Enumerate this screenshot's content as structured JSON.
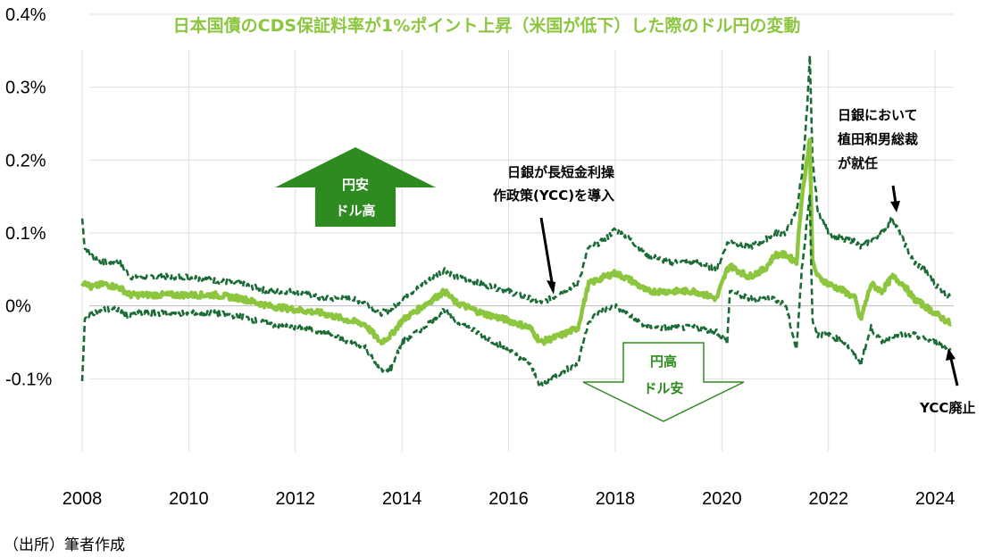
{
  "colors": {
    "title": "#8cc63f",
    "center_line": "#8cc63f",
    "band_line": "#1a6b35",
    "up_arrow": "#2e8b1f",
    "down_arrow_stroke": "#2e8b1f",
    "grid": "#e0e0e0"
  },
  "chart_data": {
    "type": "line",
    "title": "日本国債のCDS保証料率が1%ポイント上昇（米国が低下）した際のドル円の変動",
    "xlabel": "",
    "ylabel": "",
    "xlim": [
      2008.0,
      2024.35
    ],
    "ylim": [
      -0.2,
      0.4
    ],
    "x_ticks": [
      2008,
      2010,
      2012,
      2014,
      2016,
      2018,
      2020,
      2022,
      2024
    ],
    "x_tick_labels": [
      "2008",
      "2010",
      "2012",
      "2014",
      "2016",
      "2018",
      "2020",
      "2022",
      "2024"
    ],
    "y_ticks": [
      -0.1,
      0.0,
      0.1,
      0.2,
      0.3,
      0.4
    ],
    "y_tick_labels": [
      "-0.1%",
      "0%",
      "0.1%",
      "0.2%",
      "0.3%",
      "0.4%"
    ],
    "grid": "vertical and horizontal",
    "x": [
      2008.0,
      2008.05,
      2008.15,
      2008.4,
      2008.7,
      2008.9,
      2009.0,
      2009.5,
      2010.0,
      2010.5,
      2011.0,
      2011.5,
      2012.0,
      2012.5,
      2013.0,
      2013.3,
      2013.6,
      2013.8,
      2014.0,
      2014.4,
      2014.8,
      2015.0,
      2015.5,
      2016.0,
      2016.4,
      2016.6,
      2016.8,
      2017.0,
      2017.3,
      2017.5,
      2017.8,
      2018.0,
      2018.3,
      2018.6,
      2019.0,
      2019.5,
      2019.9,
      2020.1,
      2020.15,
      2020.5,
      2020.8,
      2021.0,
      2021.2,
      2021.4,
      2021.5,
      2021.6,
      2021.65,
      2021.7,
      2021.8,
      2022.0,
      2022.3,
      2022.5,
      2022.6,
      2022.8,
      2023.0,
      2023.2,
      2023.4,
      2023.6,
      2023.8,
      2024.0,
      2024.3
    ],
    "series": [
      {
        "role": "upper",
        "style": "dashed",
        "values": [
          0.12,
          0.08,
          0.07,
          0.06,
          0.06,
          0.04,
          0.04,
          0.04,
          0.04,
          0.035,
          0.03,
          0.02,
          0.02,
          0.01,
          0.01,
          0.005,
          -0.01,
          -0.005,
          0.01,
          0.03,
          0.05,
          0.04,
          0.03,
          0.02,
          0.01,
          0.005,
          0.01,
          0.02,
          0.03,
          0.08,
          0.09,
          0.105,
          0.09,
          0.07,
          0.06,
          0.06,
          0.05,
          0.085,
          0.09,
          0.08,
          0.09,
          0.1,
          0.1,
          0.13,
          0.18,
          0.27,
          0.34,
          0.2,
          0.13,
          0.1,
          0.09,
          0.09,
          0.08,
          0.09,
          0.1,
          0.12,
          0.09,
          0.06,
          0.05,
          0.03,
          0.01
        ]
      },
      {
        "role": "center",
        "style": "solid",
        "values": [
          0.03,
          0.035,
          0.025,
          0.03,
          0.025,
          0.015,
          0.015,
          0.015,
          0.015,
          0.015,
          0.01,
          0.0,
          -0.005,
          -0.01,
          -0.02,
          -0.025,
          -0.05,
          -0.04,
          -0.02,
          0.0,
          0.02,
          0.005,
          -0.01,
          -0.02,
          -0.03,
          -0.05,
          -0.045,
          -0.04,
          -0.03,
          0.03,
          0.04,
          0.045,
          0.035,
          0.02,
          0.02,
          0.02,
          0.01,
          0.05,
          0.055,
          0.04,
          0.05,
          0.07,
          0.07,
          0.06,
          0.15,
          0.2,
          0.23,
          0.06,
          0.04,
          0.03,
          0.02,
          0.01,
          -0.02,
          0.03,
          0.02,
          0.04,
          0.03,
          0.01,
          0.0,
          -0.01,
          -0.025
        ]
      },
      {
        "role": "lower",
        "style": "dashed",
        "values": [
          -0.105,
          -0.02,
          -0.01,
          -0.005,
          -0.005,
          -0.015,
          -0.01,
          -0.01,
          -0.01,
          -0.01,
          -0.015,
          -0.025,
          -0.03,
          -0.035,
          -0.05,
          -0.055,
          -0.09,
          -0.085,
          -0.05,
          -0.03,
          -0.005,
          -0.02,
          -0.04,
          -0.06,
          -0.08,
          -0.11,
          -0.1,
          -0.09,
          -0.08,
          -0.02,
          -0.005,
          0.0,
          -0.015,
          -0.03,
          -0.03,
          -0.03,
          -0.035,
          -0.05,
          0.02,
          0.01,
          0.01,
          0.01,
          0.0,
          -0.06,
          0.05,
          0.12,
          0.15,
          -0.02,
          -0.04,
          -0.04,
          -0.05,
          -0.07,
          -0.08,
          -0.03,
          -0.05,
          -0.04,
          -0.04,
          -0.04,
          -0.045,
          -0.05,
          -0.06
        ]
      }
    ]
  },
  "annotations": {
    "ycc_intro": {
      "line1": "日銀が長短金利操",
      "line2": "作政策(YCC)を導入",
      "x": 2016.75,
      "y": 0.005
    },
    "ueda": {
      "line1": "日銀において",
      "line2": "植田和男総裁",
      "line3": "が就任",
      "x": 2023.1,
      "y": 0.13
    },
    "ycc_end": {
      "text": "YCC廃止",
      "x": 2024.05,
      "y": -0.065
    }
  },
  "arrows": {
    "yen_weak": {
      "line1": "円安",
      "line2": "ドル高"
    },
    "yen_strong": {
      "line1": "円高",
      "line2": "ドル安"
    }
  },
  "source": "（出所）筆者作成"
}
